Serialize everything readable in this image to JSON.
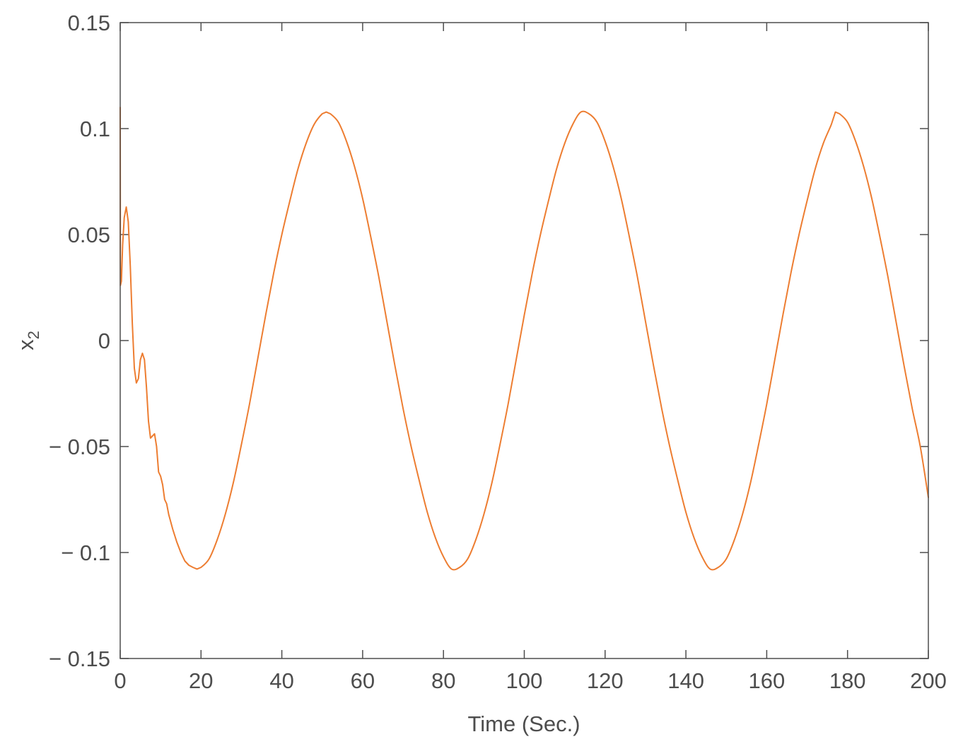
{
  "chart_data": {
    "type": "line",
    "title": "",
    "xlabel": "Time (Sec.)",
    "ylabel_main": "x",
    "ylabel_sub": "2",
    "xlim": [
      0,
      200
    ],
    "ylim": [
      -0.15,
      0.15
    ],
    "grid": false,
    "line_color": "#ed7d31",
    "axis_color": "#4d4d4d",
    "xticks": [
      0,
      20,
      40,
      60,
      80,
      100,
      120,
      140,
      160,
      180,
      200
    ],
    "xtick_labels": [
      "0",
      "20",
      "40",
      "60",
      "80",
      "100",
      "120",
      "140",
      "160",
      "180",
      "200"
    ],
    "yticks": [
      -0.15,
      -0.1,
      -0.05,
      0,
      0.05,
      0.1,
      0.15
    ],
    "ytick_labels": [
      "− 0.15",
      "− 0.1",
      "− 0.05",
      "0",
      "0.05",
      "0.1",
      "0.15"
    ],
    "series": [
      {
        "x": [
          0,
          0.05,
          0.3,
          0.6,
          1.0,
          1.5,
          2.0,
          2.5,
          3.0,
          3.5,
          4.0,
          4.5,
          5.0,
          5.5,
          6.0,
          6.5,
          7.0,
          7.5,
          8.0,
          8.5,
          9.0,
          9.5,
          10.0,
          10.5,
          11.0,
          11.5,
          12.0,
          13.0,
          14.0,
          15.0,
          16.0,
          17.0,
          18.0,
          19.0,
          20.0,
          22.0,
          24.0,
          26.0,
          28.0,
          30.0,
          32.0,
          34.0,
          36.0,
          38.0,
          40.0,
          42.0,
          44.0,
          46.0,
          48.0,
          50.0,
          51.0,
          52.0,
          54.0,
          56.0,
          58.0,
          60.0,
          62.0,
          64.0,
          66.0,
          68.0,
          70.0,
          72.0,
          74.0,
          76.0,
          78.0,
          80.0,
          82.0,
          84.0,
          86.0,
          88.0,
          90.0,
          92.0,
          94.0,
          96.0,
          98.0,
          100.0,
          102.0,
          104.0,
          106.0,
          108.0,
          110.0,
          112.0,
          114.0,
          116.0,
          118.0,
          120.0,
          122.0,
          124.0,
          126.0,
          128.0,
          130.0,
          132.0,
          134.0,
          136.0,
          138.0,
          140.0,
          142.0,
          144.0,
          146.0,
          148.0,
          150.0,
          152.0,
          154.0,
          156.0,
          158.0,
          160.0,
          162.0,
          164.0,
          166.0,
          168.0,
          170.0,
          172.0,
          174.0,
          176.0,
          177.0,
          178.0,
          180.0,
          182.0,
          184.0,
          186.0,
          188.0,
          190.0,
          192.0,
          194.0,
          196.0,
          198.0,
          200.0
        ],
        "y": [
          0.11,
          0.026,
          0.028,
          0.045,
          0.058,
          0.063,
          0.056,
          0.035,
          0.008,
          -0.013,
          -0.02,
          -0.018,
          -0.009,
          -0.006,
          -0.009,
          -0.022,
          -0.038,
          -0.046,
          -0.045,
          -0.044,
          -0.05,
          -0.062,
          -0.064,
          -0.068,
          -0.075,
          -0.077,
          -0.082,
          -0.089,
          -0.095,
          -0.1,
          -0.104,
          -0.106,
          -0.107,
          -0.1078,
          -0.107,
          -0.103,
          -0.094,
          -0.082,
          -0.067,
          -0.049,
          -0.03,
          -0.009,
          0.012,
          0.032,
          0.05,
          0.066,
          0.081,
          0.093,
          0.102,
          0.107,
          0.1078,
          0.107,
          0.103,
          0.094,
          0.082,
          0.067,
          0.049,
          0.03,
          0.009,
          -0.012,
          -0.032,
          -0.05,
          -0.066,
          -0.081,
          -0.093,
          -0.102,
          -0.1078,
          -0.107,
          -0.103,
          -0.094,
          -0.082,
          -0.067,
          -0.049,
          -0.03,
          -0.009,
          0.012,
          0.032,
          0.05,
          0.066,
          0.081,
          0.093,
          0.102,
          0.1078,
          0.107,
          0.103,
          0.094,
          0.082,
          0.067,
          0.049,
          0.03,
          0.009,
          -0.012,
          -0.032,
          -0.05,
          -0.066,
          -0.081,
          -0.093,
          -0.102,
          -0.1078,
          -0.107,
          -0.103,
          -0.094,
          -0.082,
          -0.067,
          -0.049,
          -0.03,
          -0.009,
          0.012,
          0.032,
          0.05,
          0.066,
          0.081,
          0.093,
          0.102,
          0.1078,
          0.107,
          0.103,
          0.094,
          0.082,
          0.067,
          0.049,
          0.03,
          0.009,
          -0.012,
          -0.032,
          -0.05,
          -0.074
        ]
      }
    ]
  }
}
